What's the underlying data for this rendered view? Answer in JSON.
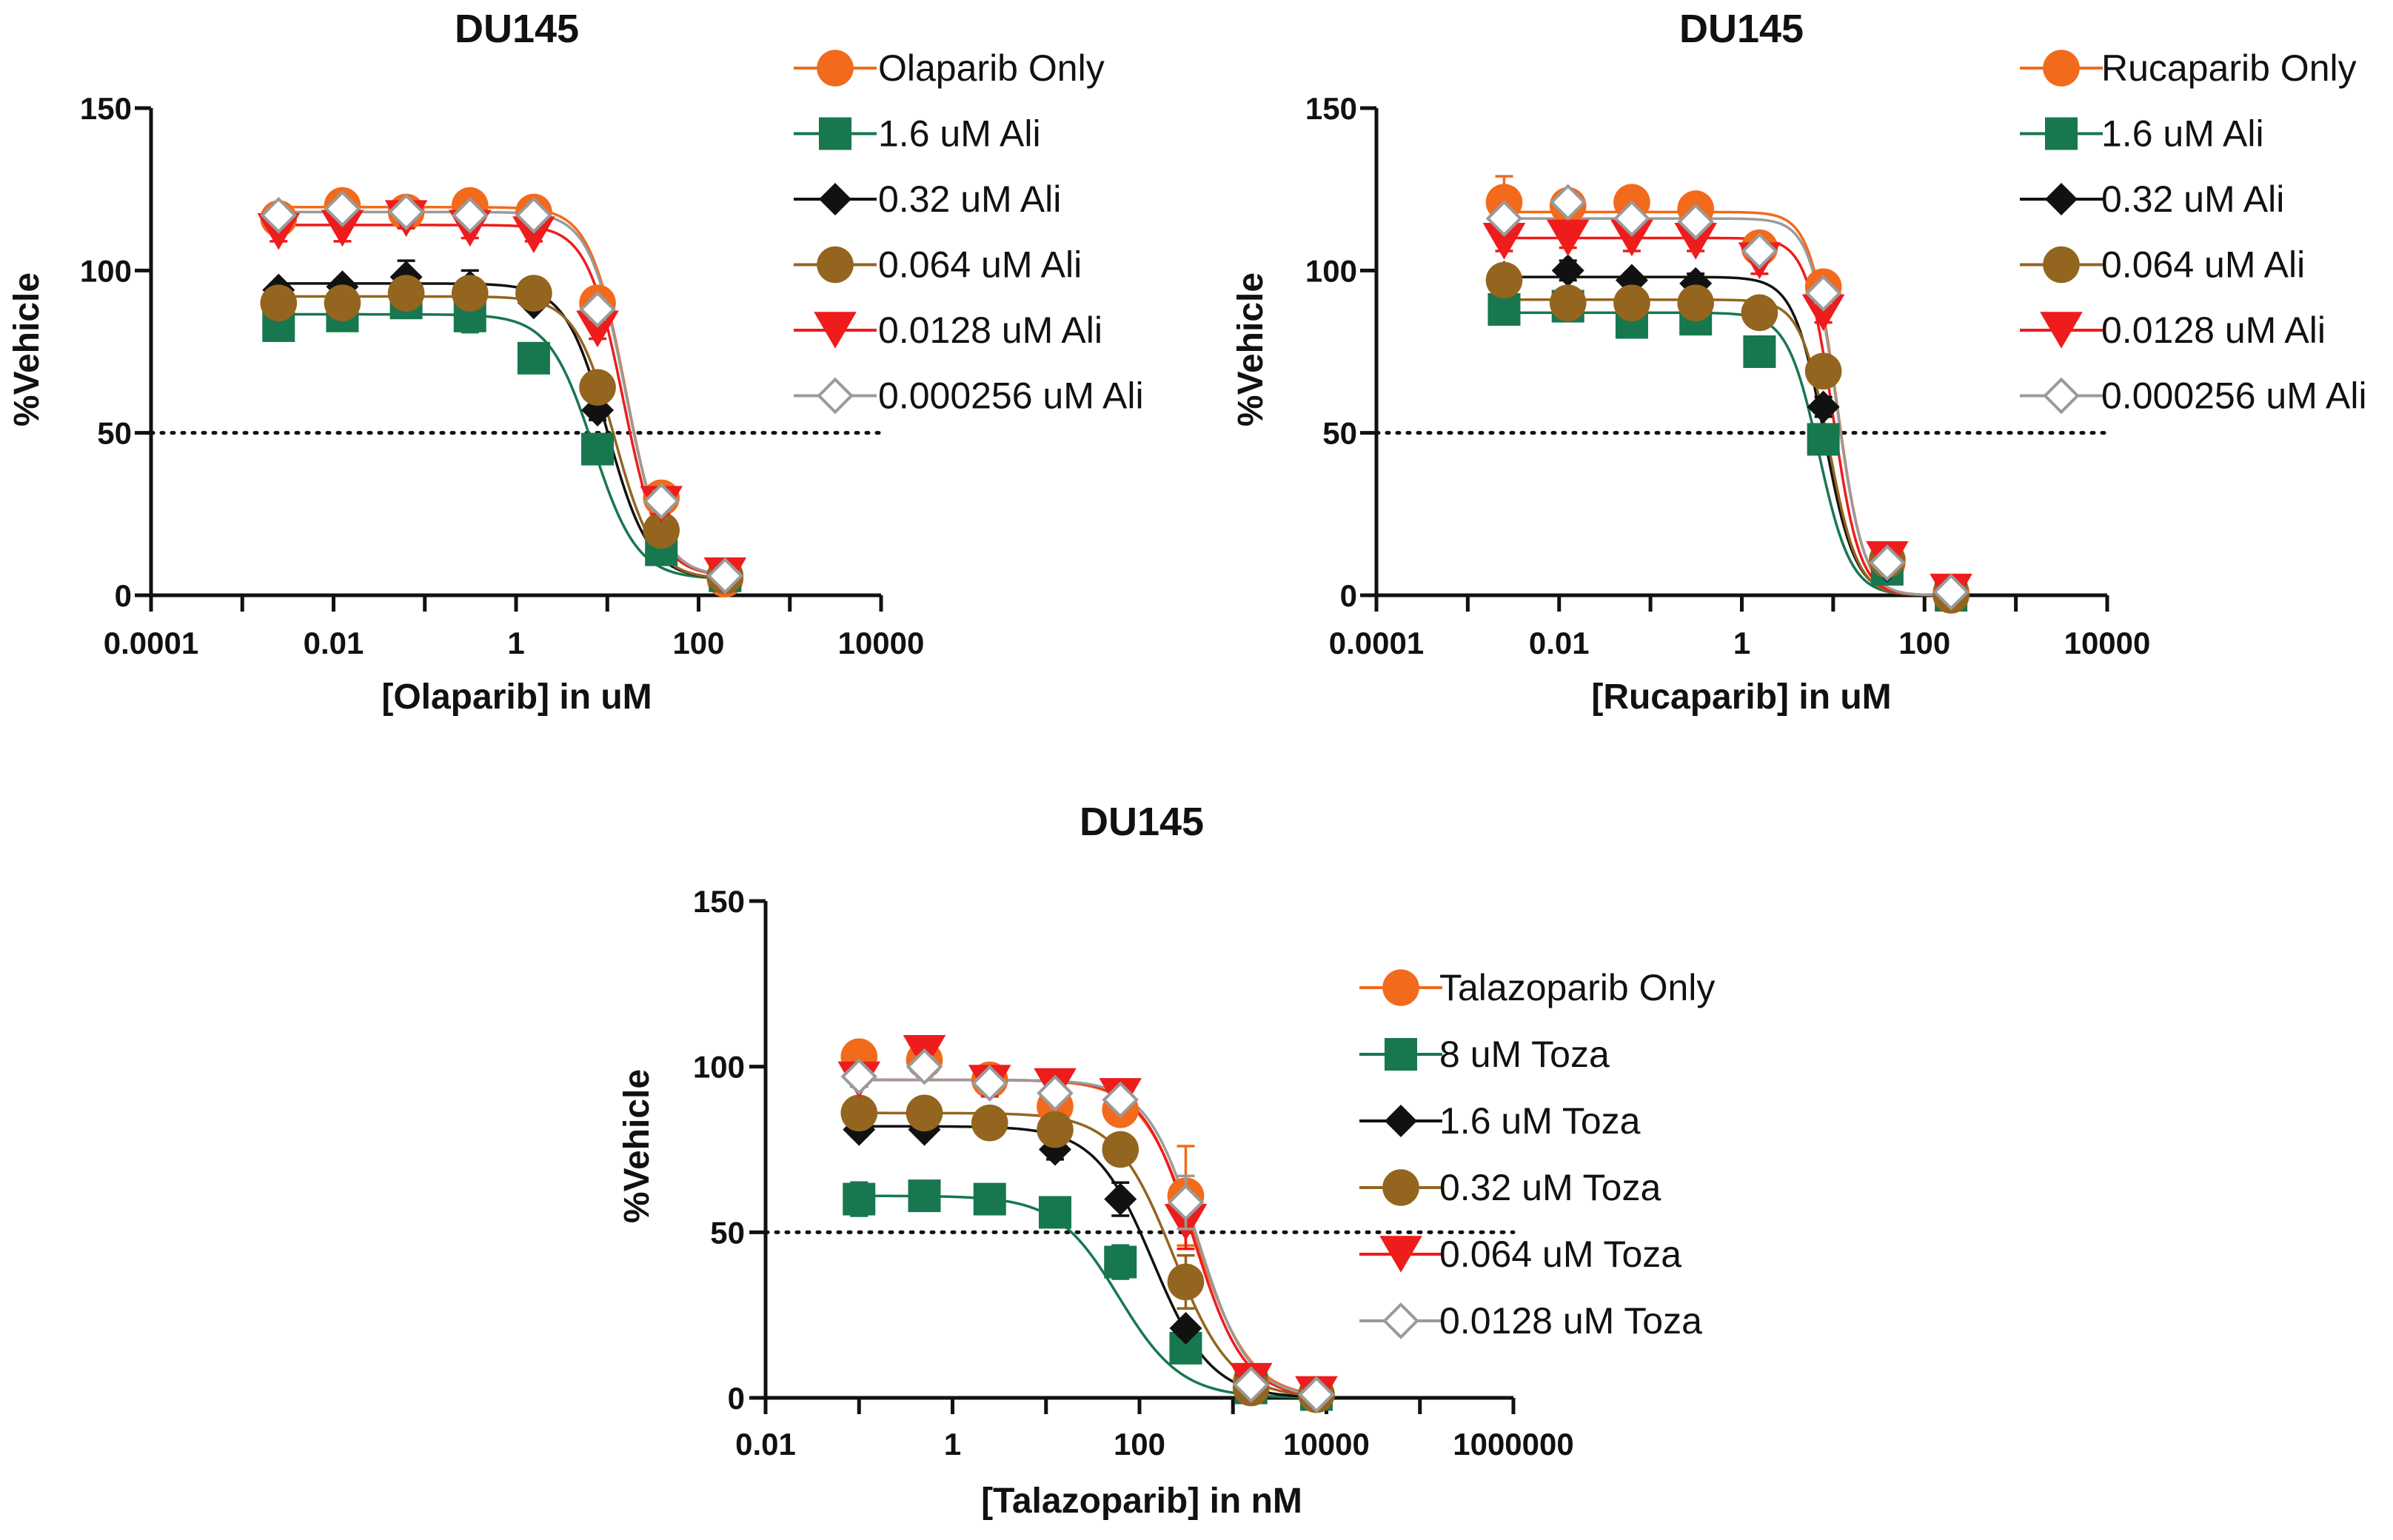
{
  "colors": {
    "Olaparib Only": "#F26A1B",
    "Rucaparib Only": "#F26A1B",
    "Talazoparib Only": "#F26A1B",
    "1.6 uM Ali": "#17774F",
    "8 uM Toza": "#17774F",
    "0.32 uM Ali": "#111111",
    "1.6 uM Toza": "#111111",
    "0.064 uM Ali": "#93651F",
    "0.32 uM Toza": "#93651F",
    "0.0128 uM Ali": "#EE1C1C",
    "0.064 uM Toza": "#EE1C1C",
    "0.000256 uM Ali": "#9A9A9A",
    "0.0128  uM Toza": "#9A9A9A",
    "reference_line": "#111111",
    "axis": "#111111"
  },
  "chart_data": [
    {
      "type": "line",
      "title": "DU145",
      "xlabel": "[Olaparib] in uM",
      "ylabel": "%Vehicle",
      "xscale": "log",
      "xlim": [
        0.0001,
        10000
      ],
      "ylim": [
        0,
        150
      ],
      "xticks": [
        0.0001,
        0.01,
        1,
        100,
        10000
      ],
      "xtick_labels": [
        "0.0001",
        "0.01",
        "1",
        "100",
        "10000"
      ],
      "yticks": [
        0,
        50,
        100,
        150
      ],
      "ytick_labels": [
        "0",
        "50",
        "100",
        "150"
      ],
      "reference_line_y": 50,
      "legend_position": "top-right, outside",
      "x": [
        0.0025,
        0.0125,
        0.0625,
        0.3125,
        1.5625,
        7.8125,
        39.0625,
        195.3125
      ],
      "series": [
        {
          "name": "Olaparib Only",
          "marker": "circle",
          "values": [
            116,
            120,
            118,
            120,
            118,
            90,
            30,
            5
          ],
          "errors": [
            3,
            3,
            2,
            2,
            2,
            3,
            4,
            2
          ],
          "fit": {
            "bottom": 6,
            "top": 119.5,
            "ec50": 16,
            "hill": 2.2
          }
        },
        {
          "name": "1.6 uM Ali",
          "marker": "square",
          "values": [
            83,
            86,
            90,
            86,
            73,
            45,
            14,
            6
          ],
          "errors": [
            2,
            2,
            3,
            5,
            2,
            3,
            2,
            2
          ],
          "fit": {
            "bottom": 5,
            "top": 86.5,
            "ec50": 7,
            "hill": 1.8
          }
        },
        {
          "name": "0.32 uM Ali",
          "marker": "diamond",
          "values": [
            94,
            95,
            98,
            95,
            90,
            57,
            20,
            6
          ],
          "errors": [
            2,
            2,
            5,
            5,
            2,
            3,
            3,
            2
          ],
          "fit": {
            "bottom": 5,
            "top": 96,
            "ec50": 10,
            "hill": 1.9
          }
        },
        {
          "name": "0.064 uM Ali",
          "marker": "circle",
          "values": [
            90,
            90,
            93,
            93,
            93,
            64,
            20,
            6
          ],
          "errors": [
            2,
            2,
            2,
            2,
            2,
            3,
            3,
            2
          ],
          "fit": {
            "bottom": 5,
            "top": 92,
            "ec50": 12,
            "hill": 2.0
          }
        },
        {
          "name": "0.0128 uM Ali",
          "marker": "triangle-down",
          "values": [
            112,
            113,
            116,
            113,
            111,
            82,
            28,
            6
          ],
          "errors": [
            3,
            4,
            3,
            3,
            2,
            3,
            3,
            2
          ],
          "fit": {
            "bottom": 6,
            "top": 114,
            "ec50": 15,
            "hill": 2.2
          }
        },
        {
          "name": "0.000256 uM Ali",
          "marker": "diamond-open",
          "values": [
            117,
            119,
            118,
            117,
            117,
            88,
            29,
            6
          ],
          "errors": [
            2,
            2,
            2,
            2,
            2,
            3,
            3,
            2
          ],
          "fit": {
            "bottom": 6,
            "top": 118,
            "ec50": 16,
            "hill": 2.2
          }
        }
      ]
    },
    {
      "type": "line",
      "title": "DU145",
      "xlabel": "[Rucaparib] in uM",
      "ylabel": "%Vehicle",
      "xscale": "log",
      "xlim": [
        0.0001,
        10000
      ],
      "ylim": [
        0,
        150
      ],
      "xticks": [
        0.0001,
        0.01,
        1,
        100,
        10000
      ],
      "xtick_labels": [
        "0.0001",
        "0.01",
        "1",
        "100",
        "10000"
      ],
      "yticks": [
        0,
        50,
        100,
        150
      ],
      "ytick_labels": [
        "0",
        "50",
        "100",
        "150"
      ],
      "reference_line_y": 50,
      "legend_position": "top-right, outside",
      "x": [
        0.0025,
        0.0125,
        0.0625,
        0.3125,
        1.5625,
        7.8125,
        39.0625,
        195.3125
      ],
      "series": [
        {
          "name": "Rucaparib Only",
          "marker": "circle",
          "values": [
            121,
            120,
            121,
            119,
            107,
            95,
            10,
            1
          ],
          "errors": [
            8,
            3,
            3,
            2,
            2,
            3,
            2,
            2
          ],
          "fit": {
            "bottom": 0,
            "top": 118,
            "ec50": 11,
            "hill": 3.0
          }
        },
        {
          "name": "1.6 uM Ali",
          "marker": "square",
          "values": [
            88,
            89,
            84,
            85,
            75,
            48,
            8,
            0
          ],
          "errors": [
            2,
            3,
            2,
            2,
            2,
            3,
            2,
            2
          ],
          "fit": {
            "bottom": 0,
            "top": 87,
            "ec50": 7,
            "hill": 2.5
          }
        },
        {
          "name": "0.32 uM Ali",
          "marker": "diamond",
          "values": [
            98,
            100,
            97,
            96,
            87,
            58,
            9,
            0
          ],
          "errors": [
            2,
            3,
            2,
            3,
            2,
            3,
            2,
            2
          ],
          "fit": {
            "bottom": 0,
            "top": 98,
            "ec50": 8,
            "hill": 2.6
          }
        },
        {
          "name": "0.064 uM Ali",
          "marker": "circle",
          "values": [
            97,
            90,
            90,
            90,
            87,
            69,
            11,
            0
          ],
          "errors": [
            2,
            3,
            2,
            2,
            2,
            3,
            2,
            2
          ],
          "fit": {
            "bottom": 0,
            "top": 91,
            "ec50": 9,
            "hill": 2.8
          }
        },
        {
          "name": "0.0128 uM Ali",
          "marker": "triangle-down",
          "values": [
            109,
            110,
            110,
            109,
            103,
            87,
            11,
            1
          ],
          "errors": [
            3,
            3,
            4,
            3,
            4,
            3,
            2,
            2
          ],
          "fit": {
            "bottom": 0,
            "top": 110,
            "ec50": 10,
            "hill": 3.0
          }
        },
        {
          "name": "0.000256 uM Ali",
          "marker": "diamond-open",
          "values": [
            116,
            121,
            116,
            115,
            106,
            93,
            10,
            1
          ],
          "errors": [
            2,
            2,
            2,
            2,
            2,
            3,
            2,
            2
          ],
          "fit": {
            "bottom": 0,
            "top": 116,
            "ec50": 11,
            "hill": 3.0
          }
        }
      ]
    },
    {
      "type": "line",
      "title": "DU145",
      "xlabel": "[Talazoparib] in nM",
      "ylabel": "%Vehicle",
      "xscale": "log",
      "xlim": [
        0.01,
        1000000
      ],
      "ylim": [
        0,
        150
      ],
      "xticks": [
        0.01,
        1,
        100,
        10000,
        1000000
      ],
      "xtick_labels": [
        "0.01",
        "1",
        "100",
        "10000",
        "1000000"
      ],
      "yticks": [
        0,
        50,
        100,
        150
      ],
      "ytick_labels": [
        "0",
        "50",
        "100",
        "150"
      ],
      "reference_line_y": 50,
      "legend_position": "right, outside",
      "x": [
        0.1,
        0.5,
        2.5,
        12.5,
        62.5,
        312.5,
        1562.5,
        7812.5
      ],
      "series": [
        {
          "name": "Talazoparib Only",
          "marker": "circle",
          "values": [
            103,
            102,
            96,
            88,
            87,
            61,
            5,
            1
          ],
          "errors": [
            2,
            4,
            2,
            3,
            3,
            15,
            2,
            2
          ],
          "fit": {
            "bottom": 0,
            "top": 96,
            "ec50": 400,
            "hill": 1.5
          }
        },
        {
          "name": "8 uM Toza",
          "marker": "square",
          "values": [
            60,
            61,
            60,
            56,
            41,
            15,
            3,
            1
          ],
          "errors": [
            5,
            3,
            2,
            4,
            5,
            2,
            2,
            2
          ],
          "fit": {
            "bottom": 0,
            "top": 61,
            "ec50": 60,
            "hill": 1.3
          }
        },
        {
          "name": "1.6 uM Toza",
          "marker": "diamond",
          "values": [
            81,
            81,
            83,
            75,
            60,
            21,
            3,
            1
          ],
          "errors": [
            2,
            2,
            2,
            3,
            5,
            2,
            2,
            2
          ],
          "fit": {
            "bottom": 0,
            "top": 82,
            "ec50": 140,
            "hill": 1.4
          }
        },
        {
          "name": "0.32 uM Toza",
          "marker": "circle",
          "values": [
            86,
            86,
            83,
            81,
            75,
            35,
            3,
            1
          ],
          "errors": [
            2,
            3,
            2,
            2,
            3,
            8,
            2,
            2
          ],
          "fit": {
            "bottom": 0,
            "top": 86,
            "ec50": 230,
            "hill": 1.4
          }
        },
        {
          "name": "0.064 uM Toza",
          "marker": "triangle-down",
          "values": [
            96,
            104,
            95,
            94,
            91,
            53,
            5,
            1
          ],
          "errors": [
            2,
            4,
            4,
            3,
            3,
            8,
            2,
            2
          ],
          "fit": {
            "bottom": 0,
            "top": 96,
            "ec50": 380,
            "hill": 1.6
          }
        },
        {
          "name": "0.0128  uM Toza",
          "marker": "diamond-open",
          "values": [
            97,
            100,
            95,
            92,
            90,
            59,
            4,
            1
          ],
          "errors": [
            2,
            3,
            2,
            2,
            2,
            8,
            2,
            2
          ],
          "fit": {
            "bottom": 0,
            "top": 96,
            "ec50": 420,
            "hill": 1.6
          }
        }
      ]
    }
  ]
}
